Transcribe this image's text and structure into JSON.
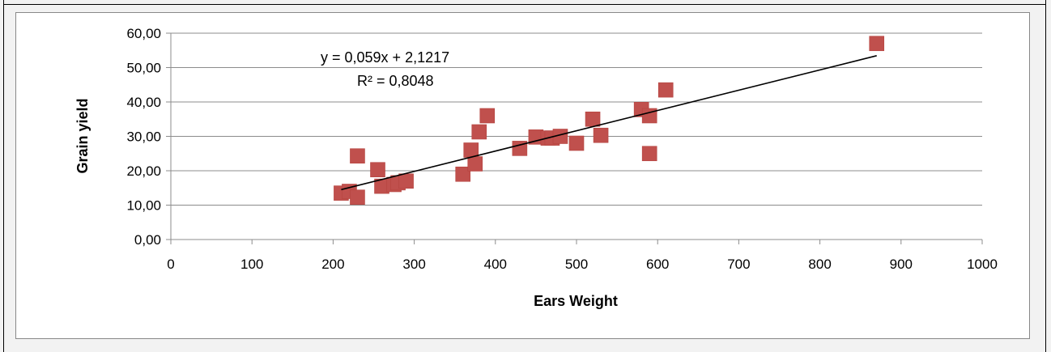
{
  "chart_data": {
    "type": "scatter",
    "title": "",
    "xlabel": "Ears Weight",
    "ylabel": "Grain yield",
    "xlim": [
      0,
      1000
    ],
    "ylim": [
      0,
      60
    ],
    "x_ticks": [
      "0",
      "100",
      "200",
      "300",
      "400",
      "500",
      "600",
      "700",
      "800",
      "900",
      "1000"
    ],
    "y_ticks": [
      "0,00",
      "10,00",
      "20,00",
      "30,00",
      "40,00",
      "50,00",
      "60,00"
    ],
    "grid": "horizontal",
    "legend": "none",
    "marker_color": "#c0504d",
    "series": [
      {
        "x": [
          210,
          220,
          230,
          230,
          255,
          260,
          275,
          280,
          290,
          360,
          370,
          375,
          380,
          390,
          430,
          450,
          465,
          470,
          480,
          500,
          520,
          530,
          580,
          590,
          590,
          610,
          870
        ],
        "y": [
          13.5,
          14.0,
          12.3,
          24.3,
          20.3,
          15.5,
          16.0,
          16.5,
          17.0,
          19.0,
          26.0,
          22.0,
          31.3,
          36.0,
          26.5,
          29.8,
          29.5,
          29.5,
          30.0,
          28.0,
          35.0,
          30.3,
          37.8,
          36.0,
          25.0,
          43.5,
          57.0
        ]
      }
    ],
    "trendline": {
      "x_range": [
        210,
        870
      ],
      "slope": 0.059,
      "intercept": 2.1217,
      "color": "#000000"
    },
    "annotations": {
      "equation": "y = 0,059x + 2,1217",
      "r_squared": "R² = 0,8048"
    }
  }
}
